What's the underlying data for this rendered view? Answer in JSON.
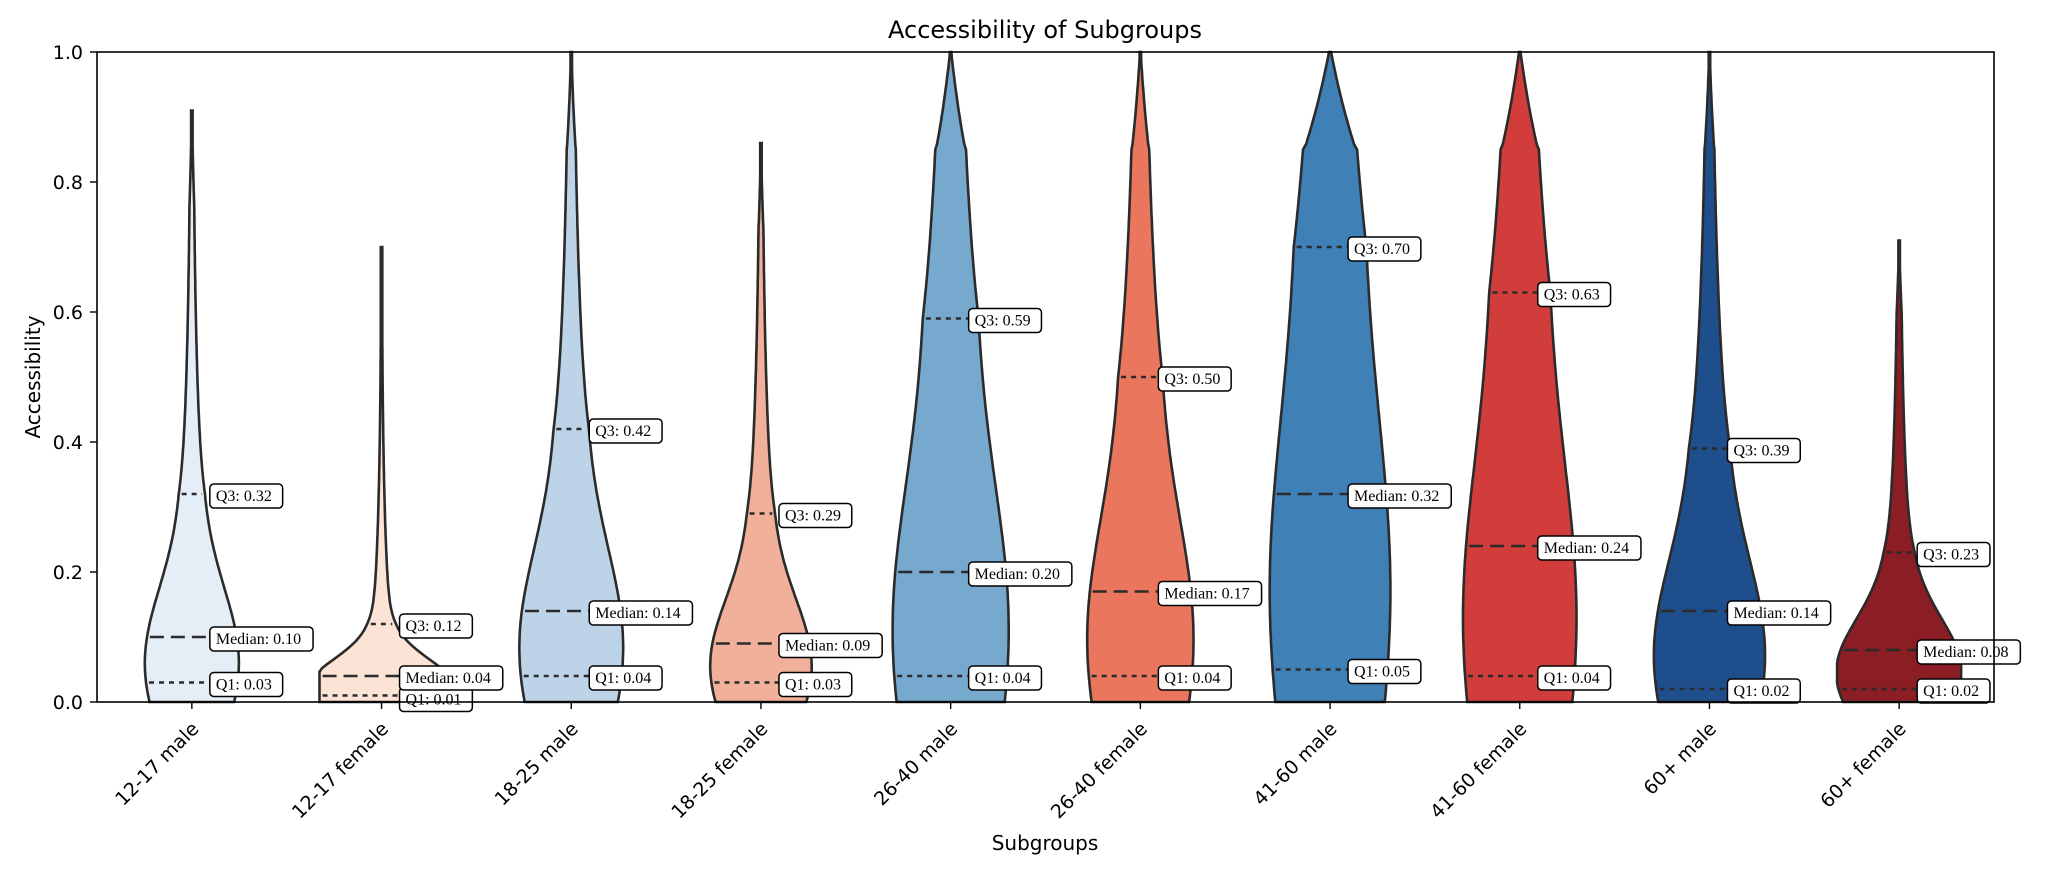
{
  "chart_data": {
    "type": "violin",
    "title": "Accessibility of Subgroups",
    "xlabel": "Subgroups",
    "ylabel": "Accessibility",
    "ylim": [
      0,
      1
    ],
    "yticks": [
      "0.0",
      "0.2",
      "0.4",
      "0.6",
      "0.8",
      "1.0"
    ],
    "grid": false,
    "q1_prefix": "Q1: ",
    "median_prefix": "Median: ",
    "q3_prefix": "Q3: ",
    "groups": [
      {
        "label": "12-17 male",
        "color": "#e5eef7",
        "q1": 0.03,
        "median": 0.1,
        "q3": 0.32,
        "q1_text": "0.03",
        "median_text": "0.10",
        "q3_text": "0.32",
        "max": 0.91,
        "width_at_base": 0.55,
        "bulge": 0.07,
        "tail_width": 0.035
      },
      {
        "label": "12-17 female",
        "color": "#fbe3d6",
        "q1": 0.01,
        "median": 0.04,
        "q3": 0.12,
        "q1_text": "0.01",
        "median_text": "0.04",
        "q3_text": "0.12",
        "max": 0.7,
        "width_at_base": 1.0,
        "bulge": 0.04,
        "tail_width": 0.035
      },
      {
        "label": "18-25 male",
        "color": "#bdd4e8",
        "q1": 0.04,
        "median": 0.14,
        "q3": 0.42,
        "q1_text": "0.04",
        "median_text": "0.14",
        "q3_text": "0.42",
        "max": 1.0,
        "width_at_base": 0.55,
        "bulge": 0.09,
        "tail_width": 0.05
      },
      {
        "label": "18-25 female",
        "color": "#f1b09a",
        "q1": 0.03,
        "median": 0.09,
        "q3": 0.29,
        "q1_text": "0.03",
        "median_text": "0.09",
        "q3_text": "0.29",
        "max": 0.86,
        "width_at_base": 0.6,
        "bulge": 0.06,
        "tail_width": 0.04
      },
      {
        "label": "26-40 male",
        "color": "#77a9cf",
        "q1": 0.04,
        "median": 0.2,
        "q3": 0.59,
        "q1_text": "0.04",
        "median_text": "0.20",
        "q3_text": "0.59",
        "max": 1.0,
        "width_at_base": 0.48,
        "bulge": 0.1,
        "tail_width": 0.09
      },
      {
        "label": "26-40 female",
        "color": "#e9765d",
        "q1": 0.04,
        "median": 0.17,
        "q3": 0.5,
        "q1_text": "0.04",
        "median_text": "0.17",
        "q3_text": "0.50",
        "max": 1.0,
        "width_at_base": 0.5,
        "bulge": 0.08,
        "tail_width": 0.07
      },
      {
        "label": "41-60 male",
        "color": "#3f80b7",
        "q1": 0.05,
        "median": 0.32,
        "q3": 0.7,
        "q1_text": "0.05",
        "median_text": "0.32",
        "q3_text": "0.70",
        "max": 1.0,
        "width_at_base": 0.4,
        "bulge": 0.1,
        "tail_width": 0.12
      },
      {
        "label": "41-60 female",
        "color": "#d13d3a",
        "q1": 0.04,
        "median": 0.24,
        "q3": 0.63,
        "q1_text": "0.04",
        "median_text": "0.24",
        "q3_text": "0.63",
        "max": 1.0,
        "width_at_base": 0.42,
        "bulge": 0.1,
        "tail_width": 0.1
      },
      {
        "label": "60+ male",
        "color": "#1f4e8c",
        "q1": 0.02,
        "median": 0.14,
        "q3": 0.39,
        "q1_text": "0.02",
        "median_text": "0.14",
        "q3_text": "0.39",
        "max": 1.0,
        "width_at_base": 0.58,
        "bulge": 0.08,
        "tail_width": 0.06
      },
      {
        "label": "60+ female",
        "color": "#8b1d25",
        "q1": 0.02,
        "median": 0.08,
        "q3": 0.23,
        "q1_text": "0.02",
        "median_text": "0.08",
        "q3_text": "0.23",
        "max": 0.71,
        "width_at_base": 0.8,
        "bulge": 0.06,
        "tail_width": 0.04
      }
    ]
  }
}
